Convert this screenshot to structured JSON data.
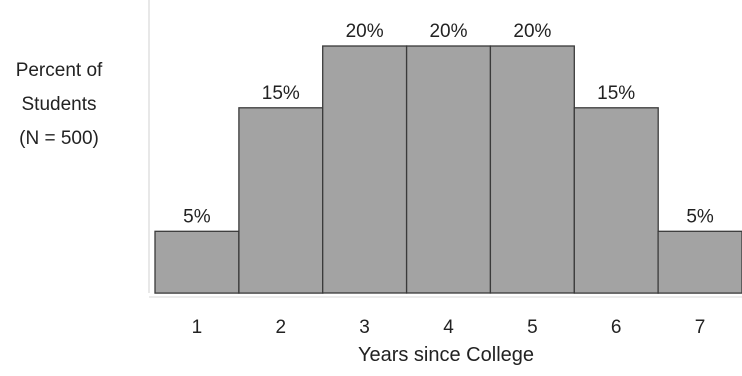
{
  "chart_data": {
    "type": "bar",
    "title": "",
    "xlabel": "Years since College",
    "ylabel_lines": [
      "Percent of",
      "Students",
      "(N = 500)"
    ],
    "categories": [
      "1",
      "2",
      "3",
      "4",
      "5",
      "6",
      "7"
    ],
    "values": [
      5,
      15,
      20,
      20,
      20,
      15,
      5
    ],
    "data_labels": [
      "5%",
      "15%",
      "20%",
      "20%",
      "20%",
      "15%",
      "5%"
    ],
    "ylim": [
      0,
      24
    ],
    "grid": false,
    "legend": "none",
    "bar_color": "#a3a3a3",
    "bar_edge_color": "#3a3a3a"
  }
}
